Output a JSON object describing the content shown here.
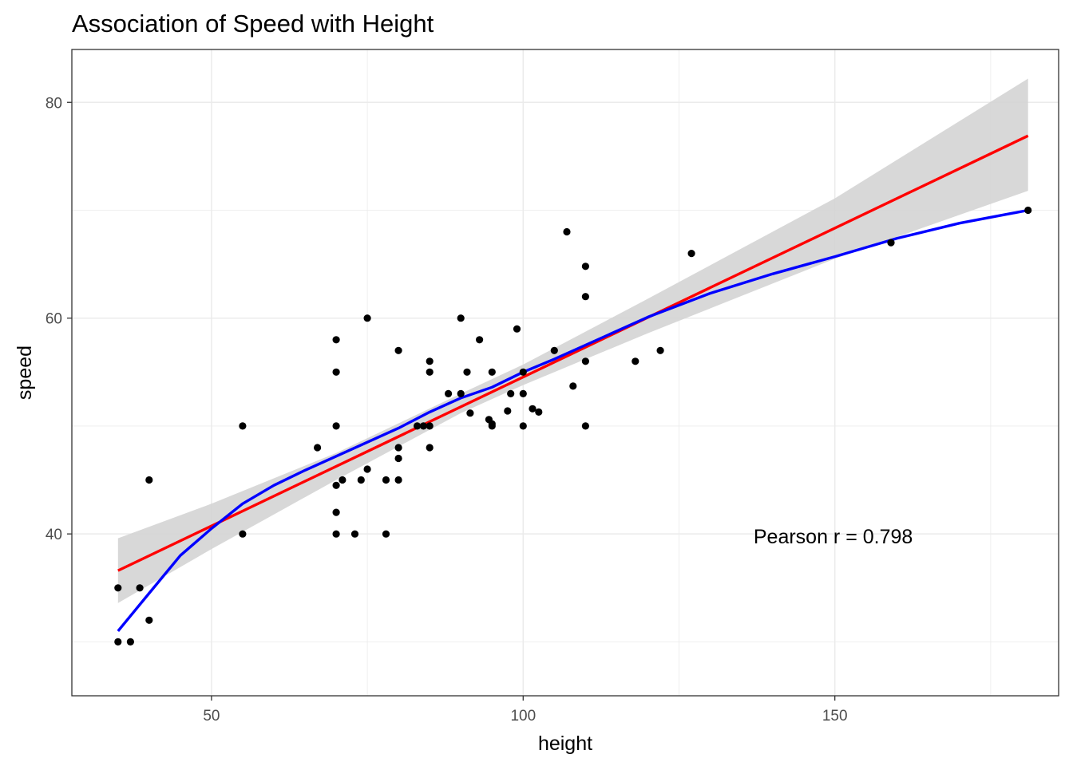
{
  "chart_data": {
    "type": "scatter",
    "title": "Association of Speed with Height",
    "xlabel": "height",
    "ylabel": "speed",
    "xlim": [
      27.6,
      185.9
    ],
    "ylim": [
      25.0,
      84.9
    ],
    "x_ticks": [
      50,
      100,
      150
    ],
    "y_ticks": [
      40,
      60,
      80
    ],
    "x_tick_labels": [
      "50",
      "100",
      "150"
    ],
    "y_tick_labels": [
      "40",
      "60",
      "80"
    ],
    "grid": true,
    "theme": "bw",
    "annotation": "Pearson r = 0.798",
    "annotation_position": [
      135.0,
      39.8
    ],
    "points": [
      {
        "x": 35,
        "y": 35
      },
      {
        "x": 35,
        "y": 30
      },
      {
        "x": 37,
        "y": 30
      },
      {
        "x": 38.5,
        "y": 35
      },
      {
        "x": 40,
        "y": 32
      },
      {
        "x": 40,
        "y": 45
      },
      {
        "x": 55,
        "y": 50
      },
      {
        "x": 55,
        "y": 40
      },
      {
        "x": 67,
        "y": 48
      },
      {
        "x": 70,
        "y": 58
      },
      {
        "x": 70,
        "y": 55
      },
      {
        "x": 70,
        "y": 50
      },
      {
        "x": 70,
        "y": 44.5
      },
      {
        "x": 70,
        "y": 42
      },
      {
        "x": 70,
        "y": 40
      },
      {
        "x": 71,
        "y": 45
      },
      {
        "x": 73,
        "y": 40
      },
      {
        "x": 74,
        "y": 45
      },
      {
        "x": 75,
        "y": 60
      },
      {
        "x": 75,
        "y": 46
      },
      {
        "x": 78,
        "y": 45
      },
      {
        "x": 78,
        "y": 40
      },
      {
        "x": 80,
        "y": 57
      },
      {
        "x": 80,
        "y": 48
      },
      {
        "x": 80,
        "y": 47
      },
      {
        "x": 80,
        "y": 45
      },
      {
        "x": 83,
        "y": 50
      },
      {
        "x": 84,
        "y": 50
      },
      {
        "x": 85,
        "y": 56
      },
      {
        "x": 85,
        "y": 55
      },
      {
        "x": 85,
        "y": 50
      },
      {
        "x": 85,
        "y": 48
      },
      {
        "x": 88,
        "y": 53
      },
      {
        "x": 90,
        "y": 60
      },
      {
        "x": 90,
        "y": 53
      },
      {
        "x": 91,
        "y": 55
      },
      {
        "x": 91.5,
        "y": 51.2
      },
      {
        "x": 93,
        "y": 58
      },
      {
        "x": 94.5,
        "y": 50.6
      },
      {
        "x": 95,
        "y": 55
      },
      {
        "x": 95,
        "y": 50.2
      },
      {
        "x": 95,
        "y": 50
      },
      {
        "x": 97.5,
        "y": 51.4
      },
      {
        "x": 98,
        "y": 53
      },
      {
        "x": 99,
        "y": 59
      },
      {
        "x": 100,
        "y": 55
      },
      {
        "x": 100,
        "y": 53
      },
      {
        "x": 100,
        "y": 50
      },
      {
        "x": 101.5,
        "y": 51.6
      },
      {
        "x": 102.5,
        "y": 51.3
      },
      {
        "x": 105,
        "y": 57
      },
      {
        "x": 107,
        "y": 68
      },
      {
        "x": 108,
        "y": 53.7
      },
      {
        "x": 110,
        "y": 64.8
      },
      {
        "x": 110,
        "y": 62
      },
      {
        "x": 110,
        "y": 56
      },
      {
        "x": 110,
        "y": 50
      },
      {
        "x": 118,
        "y": 56
      },
      {
        "x": 122,
        "y": 57
      },
      {
        "x": 127,
        "y": 66
      },
      {
        "x": 159,
        "y": 67
      },
      {
        "x": 181,
        "y": 70
      }
    ],
    "series": [
      {
        "kind": "linear-fit",
        "color": "#ff0000",
        "line": [
          {
            "x": 35,
            "y": 36.6
          },
          {
            "x": 181,
            "y": 76.9
          }
        ],
        "ci_band": [
          {
            "x": 35,
            "lower": 33.6,
            "upper": 39.6
          },
          {
            "x": 50,
            "lower": 38.6,
            "upper": 42.8
          },
          {
            "x": 70,
            "lower": 45.0,
            "upper": 47.5
          },
          {
            "x": 90,
            "lower": 51.2,
            "upper": 53.0
          },
          {
            "x": 100,
            "lower": 53.8,
            "upper": 55.7
          },
          {
            "x": 120,
            "lower": 58.6,
            "upper": 61.8
          },
          {
            "x": 150,
            "lower": 65.5,
            "upper": 71.1
          },
          {
            "x": 181,
            "lower": 71.8,
            "upper": 82.2
          }
        ]
      },
      {
        "kind": "loess-fit",
        "color": "#0000ff",
        "line": [
          {
            "x": 35,
            "y": 31.0
          },
          {
            "x": 40,
            "y": 34.5
          },
          {
            "x": 45,
            "y": 38.0
          },
          {
            "x": 50,
            "y": 40.5
          },
          {
            "x": 55,
            "y": 42.8
          },
          {
            "x": 60,
            "y": 44.5
          },
          {
            "x": 65,
            "y": 45.9
          },
          {
            "x": 70,
            "y": 47.2
          },
          {
            "x": 75,
            "y": 48.5
          },
          {
            "x": 80,
            "y": 49.8
          },
          {
            "x": 85,
            "y": 51.3
          },
          {
            "x": 90,
            "y": 52.6
          },
          {
            "x": 95,
            "y": 53.6
          },
          {
            "x": 100,
            "y": 55.0
          },
          {
            "x": 105,
            "y": 56.2
          },
          {
            "x": 110,
            "y": 57.5
          },
          {
            "x": 120,
            "y": 60.1
          },
          {
            "x": 130,
            "y": 62.3
          },
          {
            "x": 140,
            "y": 64.1
          },
          {
            "x": 150,
            "y": 65.7
          },
          {
            "x": 160,
            "y": 67.4
          },
          {
            "x": 170,
            "y": 68.8
          },
          {
            "x": 181,
            "y": 70.0
          }
        ]
      }
    ],
    "colors": {
      "point": "#000000",
      "band": "#d4d4d4",
      "grid": "#ebebeb",
      "panel_border": "#333333",
      "tick_text": "#4d4d4d"
    }
  }
}
